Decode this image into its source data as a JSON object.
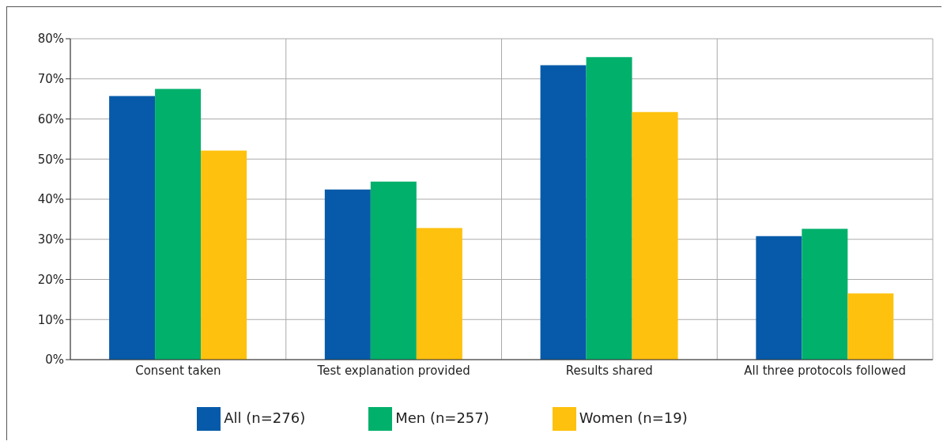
{
  "chart_data": {
    "type": "bar",
    "categories": [
      "Consent taken",
      "Test explanation provided",
      "Results shared",
      "All three protocols followed"
    ],
    "series": [
      {
        "name": "All (n=276)",
        "color": "#065aa9",
        "values": [
          65.7,
          42.4,
          73.4,
          30.8
        ]
      },
      {
        "name": "Men (n=257)",
        "color": "#00b06b",
        "values": [
          67.5,
          44.4,
          75.4,
          32.6
        ]
      },
      {
        "name": "Women (n=19)",
        "color": "#fec10e",
        "values": [
          52.1,
          32.8,
          61.7,
          16.5
        ]
      }
    ],
    "ylim": [
      0,
      80
    ],
    "yticks": [
      {
        "value": 0,
        "label": "0%"
      },
      {
        "value": 10,
        "label": "10%"
      },
      {
        "value": 20,
        "label": "20%"
      },
      {
        "value": 30,
        "label": "30%"
      },
      {
        "value": 40,
        "label": "40%"
      },
      {
        "value": 50,
        "label": "50%"
      },
      {
        "value": 60,
        "label": "60%"
      },
      {
        "value": 70,
        "label": "70%"
      },
      {
        "value": 80,
        "label": "80%"
      }
    ],
    "grid": true,
    "legend": "bottom"
  }
}
